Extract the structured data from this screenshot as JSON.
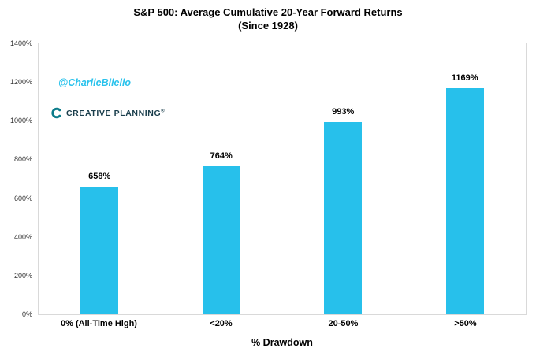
{
  "title_line1": "S&P 500: Average Cumulative 20-Year Forward Returns",
  "title_line2": "(Since 1928)",
  "watermark": "@CharlieBilello",
  "logo": {
    "text": "CREATIVE PLANNING",
    "tm": "®"
  },
  "chart_data": {
    "type": "bar",
    "title": "S&P 500: Average Cumulative 20-Year Forward Returns (Since 1928)",
    "categories": [
      "0% (All-Time High)",
      "<20%",
      "20-50%",
      ">50%"
    ],
    "values": [
      658,
      764,
      993,
      1169
    ],
    "value_labels": [
      "658%",
      "764%",
      "993%",
      "1169%"
    ],
    "xlabel": "% Drawdown",
    "ylabel": "",
    "ylim": [
      0,
      1400
    ],
    "ytick_step": 200,
    "ytick_labels": [
      "0%",
      "200%",
      "400%",
      "600%",
      "800%",
      "1000%",
      "1200%",
      "1400%"
    ],
    "grid": false,
    "legend_position": "none"
  },
  "colors": {
    "bar": "#27c0eb",
    "watermark": "#29c2ec",
    "axis": "#d9d9d9",
    "logo_icon": "#0c7c8a",
    "logo_text": "#1a3e4c"
  }
}
